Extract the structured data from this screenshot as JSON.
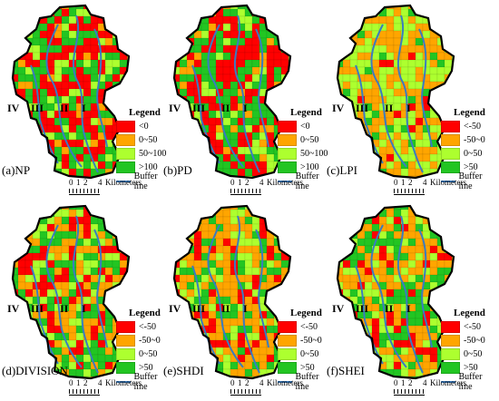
{
  "figure": {
    "panels": [
      {
        "caption": "(a)NP",
        "legend_title": "Legend",
        "classes": [
          {
            "label": "<0",
            "color": "#ff0000"
          },
          {
            "label": "0~50",
            "color": "#ffa500"
          },
          {
            "label": "50~100",
            "color": "#adff2f"
          },
          {
            "label": ">100",
            "color": "#22c522"
          }
        ],
        "buffer_label": "Buffer line",
        "zones": [
          "IV",
          "III",
          "II",
          "I"
        ],
        "scale": {
          "ticks": [
            "0",
            "1",
            "2",
            "4"
          ],
          "unit": "Kilometers"
        },
        "mix": [
          0.42,
          0.08,
          0.15,
          0.35
        ]
      },
      {
        "caption": "(b)PD",
        "legend_title": "Legend",
        "classes": [
          {
            "label": "<0",
            "color": "#ff0000"
          },
          {
            "label": "0~50",
            "color": "#ffa500"
          },
          {
            "label": "50~100",
            "color": "#adff2f"
          },
          {
            "label": ">100",
            "color": "#22c522"
          }
        ],
        "buffer_label": "Buffer line",
        "zones": [
          "IV",
          "III",
          "II",
          "I"
        ],
        "scale": {
          "ticks": [
            "0",
            "1",
            "2",
            "4"
          ],
          "unit": "Kilometers"
        },
        "mix": [
          0.42,
          0.08,
          0.15,
          0.35
        ]
      },
      {
        "caption": "(c)LPI",
        "legend_title": "Legend",
        "classes": [
          {
            "label": "<-50",
            "color": "#ff0000"
          },
          {
            "label": "-50~0",
            "color": "#ffa500"
          },
          {
            "label": "0~50",
            "color": "#adff2f"
          },
          {
            "label": ">50",
            "color": "#22c522"
          }
        ],
        "buffer_label": "Buffer line",
        "zones": [
          "IV",
          "III",
          "II",
          "I"
        ],
        "scale": {
          "ticks": [
            "0",
            "1",
            "2",
            "4"
          ],
          "unit": "Kilometers"
        },
        "mix": [
          0.05,
          0.5,
          0.35,
          0.1
        ]
      },
      {
        "caption": "(d)DIVISION",
        "legend_title": "Legend",
        "classes": [
          {
            "label": "<-50",
            "color": "#ff0000"
          },
          {
            "label": "-50~0",
            "color": "#ffa500"
          },
          {
            "label": "0~50",
            "color": "#adff2f"
          },
          {
            "label": ">50",
            "color": "#22c522"
          }
        ],
        "buffer_label": "Buffer line",
        "zones": [
          "IV",
          "III",
          "II",
          "I"
        ],
        "scale": {
          "ticks": [
            "0",
            "1",
            "2",
            "4"
          ],
          "unit": "Kilometers"
        },
        "mix": [
          0.2,
          0.3,
          0.2,
          0.3
        ]
      },
      {
        "caption": "(e)SHDI",
        "legend_title": "Legend",
        "classes": [
          {
            "label": "<-50",
            "color": "#ff0000"
          },
          {
            "label": "-50~0",
            "color": "#ffa500"
          },
          {
            "label": "0~50",
            "color": "#adff2f"
          },
          {
            "label": ">50",
            "color": "#22c522"
          }
        ],
        "buffer_label": "Buffer line",
        "zones": [
          "IV",
          "III",
          "II",
          "I"
        ],
        "scale": {
          "ticks": [
            "0",
            "1",
            "2",
            "4"
          ],
          "unit": "Kilometers"
        },
        "mix": [
          0.15,
          0.4,
          0.2,
          0.25
        ]
      },
      {
        "caption": "(f)SHEI",
        "legend_title": "Legend",
        "classes": [
          {
            "label": "<-50",
            "color": "#ff0000"
          },
          {
            "label": "-50~0",
            "color": "#ffa500"
          },
          {
            "label": "0~50",
            "color": "#adff2f"
          },
          {
            "label": ">50",
            "color": "#22c522"
          }
        ],
        "buffer_label": "Buffer line",
        "zones": [
          "IV",
          "III",
          "II",
          "I"
        ],
        "scale": {
          "ticks": [
            "0",
            "1",
            "2",
            "4"
          ],
          "unit": "Kilometers"
        },
        "mix": [
          0.15,
          0.4,
          0.2,
          0.25
        ]
      }
    ],
    "buffer_color": "#3a7cc0",
    "outline_color": "#000000"
  }
}
